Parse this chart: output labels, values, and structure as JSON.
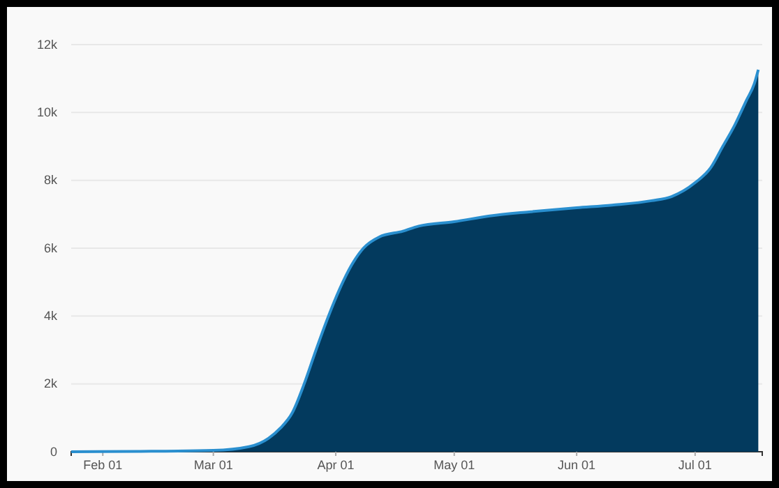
{
  "chart_data": {
    "type": "area",
    "x": [
      "--01-24",
      "--02-10",
      "--03-01",
      "--03-10",
      "--03-15",
      "--03-18",
      "--03-21",
      "--03-24",
      "--03-27",
      "--03-30",
      "--04-02",
      "--04-05",
      "--04-08",
      "--04-12",
      "--04-18",
      "--04-22",
      "--05-01",
      "--05-10",
      "--05-20",
      "--06-01",
      "--06-10",
      "--06-20",
      "--06-25",
      "--07-01",
      "--07-05",
      "--07-08",
      "--07-11",
      "--07-14",
      "--07-16",
      "--07-17"
    ],
    "series": [
      {
        "color": "#033a5e",
        "values": [
          0,
          10,
          40,
          150,
          400,
          700,
          1150,
          2000,
          3000,
          3950,
          4800,
          5500,
          6000,
          6330,
          6500,
          6650,
          6780,
          6950,
          7070,
          7190,
          7270,
          7400,
          7520,
          7930,
          8380,
          9000,
          9620,
          10360,
          10850,
          11260
        ]
      }
    ],
    "xlim": [
      "--01-24",
      "--07-18"
    ],
    "xticks": [
      {
        "value": "--02-01",
        "label": "Feb 01"
      },
      {
        "value": "--03-01",
        "label": "Mar 01"
      },
      {
        "value": "--04-01",
        "label": "Apr 01"
      },
      {
        "value": "--05-01",
        "label": "May 01"
      },
      {
        "value": "--06-01",
        "label": "Jun 01"
      },
      {
        "value": "--07-01",
        "label": "Jul 01"
      }
    ],
    "ylim": [
      0,
      12000
    ],
    "yticks": [
      {
        "value": 0,
        "label": "0"
      },
      {
        "value": 2000,
        "label": "2k"
      },
      {
        "value": 4000,
        "label": "4k"
      },
      {
        "value": 6000,
        "label": "6k"
      },
      {
        "value": 8000,
        "label": "8k"
      },
      {
        "value": 10000,
        "label": "10k"
      },
      {
        "value": 12000,
        "label": "12k"
      }
    ],
    "grid": "y"
  }
}
